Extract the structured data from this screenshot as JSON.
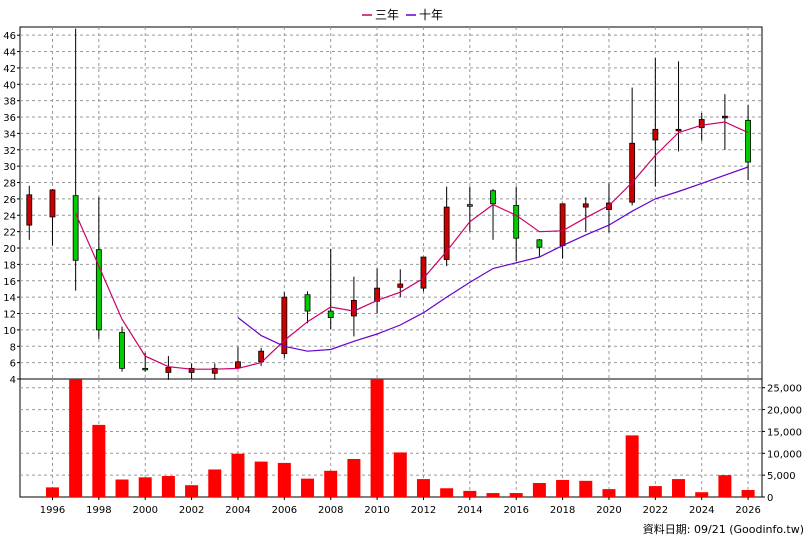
{
  "legend": [
    {
      "label": "三年",
      "color": "#cc0066"
    },
    {
      "label": "十年",
      "color": "#6600cc"
    }
  ],
  "footnote": "資料日期: 09/21 (Goodinfo.tw)",
  "colors": {
    "up": "#cc0000",
    "down": "#00cc00",
    "volume": "#ff0000",
    "grid": "#999999"
  },
  "chart_data": [
    {
      "type": "candlestick",
      "title": "",
      "ylim": [
        4,
        47
      ],
      "y_ticks": [
        4,
        6,
        8,
        10,
        12,
        14,
        16,
        18,
        20,
        22,
        24,
        26,
        28,
        30,
        32,
        34,
        36,
        38,
        40,
        42,
        44,
        46
      ],
      "x_tick_labels": [
        "1996",
        "1998",
        "2000",
        "2002",
        "2004",
        "2006",
        "2008",
        "2010",
        "2012",
        "2014",
        "2016",
        "2018",
        "2020",
        "2022",
        "2024",
        "2026"
      ],
      "x_range": [
        1994.6,
        2026.6
      ],
      "candles": [
        {
          "year": 1995,
          "open": 22.8,
          "high": 27.6,
          "low": 21.0,
          "close": 26.5
        },
        {
          "year": 1996,
          "open": 23.8,
          "high": 27.2,
          "low": 20.3,
          "close": 27.1
        },
        {
          "year": 1997,
          "open": 26.4,
          "high": 46.8,
          "low": 14.8,
          "close": 18.5
        },
        {
          "year": 1998,
          "open": 19.8,
          "high": 26.2,
          "low": 8.9,
          "close": 10.0
        },
        {
          "year": 1999,
          "open": 9.7,
          "high": 10.4,
          "low": 4.9,
          "close": 5.3
        },
        {
          "year": 2000,
          "open": 5.3,
          "high": 7.2,
          "low": 4.9,
          "close": 5.2
        },
        {
          "year": 2001,
          "open": 4.8,
          "high": 6.8,
          "low": 3.9,
          "close": 5.4
        },
        {
          "year": 2002,
          "open": 4.8,
          "high": 5.9,
          "low": 3.9,
          "close": 5.3
        },
        {
          "year": 2003,
          "open": 4.7,
          "high": 5.9,
          "low": 3.9,
          "close": 5.3
        },
        {
          "year": 2004,
          "open": 5.4,
          "high": 7.9,
          "low": 5.2,
          "close": 6.1
        },
        {
          "year": 2005,
          "open": 6.1,
          "high": 7.8,
          "low": 5.6,
          "close": 7.4
        },
        {
          "year": 2006,
          "open": 7.1,
          "high": 14.6,
          "low": 6.6,
          "close": 14.0
        },
        {
          "year": 2007,
          "open": 14.3,
          "high": 14.7,
          "low": 10.8,
          "close": 12.3
        },
        {
          "year": 2008,
          "open": 12.3,
          "high": 19.9,
          "low": 10.1,
          "close": 11.5
        },
        {
          "year": 2009,
          "open": 11.7,
          "high": 16.5,
          "low": 9.2,
          "close": 13.6
        },
        {
          "year": 2010,
          "open": 13.5,
          "high": 17.5,
          "low": 12.0,
          "close": 15.1
        },
        {
          "year": 2011,
          "open": 15.2,
          "high": 17.4,
          "low": 14.0,
          "close": 15.6
        },
        {
          "year": 2012,
          "open": 15.1,
          "high": 18.9,
          "low": 14.7,
          "close": 18.9
        },
        {
          "year": 2013,
          "open": 18.6,
          "high": 27.5,
          "low": 17.8,
          "close": 25.0
        },
        {
          "year": 2014,
          "open": 25.3,
          "high": 27.5,
          "low": 22.0,
          "close": 25.1
        },
        {
          "year": 2015,
          "open": 27.0,
          "high": 27.2,
          "low": 21.0,
          "close": 25.4
        },
        {
          "year": 2016,
          "open": 25.2,
          "high": 27.5,
          "low": 18.4,
          "close": 21.2
        },
        {
          "year": 2017,
          "open": 21.0,
          "high": 21.1,
          "low": 18.9,
          "close": 20.1
        },
        {
          "year": 2018,
          "open": 20.3,
          "high": 25.4,
          "low": 18.7,
          "close": 25.4
        },
        {
          "year": 2019,
          "open": 25.0,
          "high": 26.2,
          "low": 22.0,
          "close": 25.4
        },
        {
          "year": 2020,
          "open": 24.7,
          "high": 27.9,
          "low": 21.9,
          "close": 25.5
        },
        {
          "year": 2021,
          "open": 25.6,
          "high": 39.6,
          "low": 25.2,
          "close": 32.8
        },
        {
          "year": 2022,
          "open": 33.2,
          "high": 43.2,
          "low": 27.5,
          "close": 34.5
        },
        {
          "year": 2023,
          "open": 34.4,
          "high": 42.8,
          "low": 31.8,
          "close": 34.5
        },
        {
          "year": 2024,
          "open": 34.7,
          "high": 36.5,
          "low": 33.1,
          "close": 35.7
        },
        {
          "year": 2025,
          "open": 35.9,
          "high": 38.8,
          "low": 32.0,
          "close": 36.1
        },
        {
          "year": 2026,
          "open": 35.6,
          "high": 37.5,
          "low": 28.3,
          "close": 30.5
        }
      ],
      "series": [
        {
          "name": "三年",
          "color": "#cc0066",
          "x": [
            1997,
            1998,
            1999,
            2000,
            2001,
            2002,
            2003,
            2004,
            2005,
            2006,
            2007,
            2008,
            2009,
            2010,
            2011,
            2012,
            2013,
            2014,
            2015,
            2016,
            2017,
            2018,
            2019,
            2020,
            2021,
            2022,
            2023,
            2024,
            2025,
            2026
          ],
          "values": [
            24.2,
            17.8,
            11.3,
            6.8,
            5.5,
            5.2,
            5.2,
            5.3,
            6.0,
            8.7,
            11.0,
            12.8,
            12.3,
            13.6,
            14.6,
            16.3,
            19.6,
            23.2,
            25.3,
            24.0,
            22.0,
            22.1,
            23.7,
            25.2,
            28.0,
            31.3,
            34.1,
            35.0,
            35.4,
            34.1
          ]
        },
        {
          "name": "十年",
          "color": "#6600cc",
          "x": [
            2004,
            2005,
            2006,
            2007,
            2008,
            2009,
            2010,
            2011,
            2012,
            2013,
            2014,
            2015,
            2016,
            2017,
            2018,
            2019,
            2020,
            2021,
            2022,
            2023,
            2024,
            2025,
            2026
          ],
          "values": [
            11.5,
            9.3,
            8.0,
            7.4,
            7.6,
            8.6,
            9.5,
            10.6,
            12.1,
            14.0,
            15.8,
            17.5,
            18.2,
            18.9,
            20.3,
            21.6,
            22.8,
            24.5,
            26.0,
            26.9,
            27.9,
            28.9,
            29.9
          ]
        }
      ]
    },
    {
      "type": "bar",
      "title": "",
      "ylim": [
        0,
        27000
      ],
      "y_ticks": [
        0,
        5000,
        10000,
        15000,
        20000,
        25000
      ],
      "y_tick_labels": [
        "0",
        "5,000",
        "10,000",
        "15,000",
        "20,000",
        "25,000"
      ],
      "x_tick_labels": [
        "1996",
        "1998",
        "2000",
        "2002",
        "2004",
        "2006",
        "2008",
        "2010",
        "2012",
        "2014",
        "2016",
        "2018",
        "2020",
        "2022",
        "2024",
        "2026"
      ],
      "categories": [
        1995,
        1996,
        1997,
        1998,
        1999,
        2000,
        2001,
        2002,
        2003,
        2004,
        2005,
        2006,
        2007,
        2008,
        2009,
        2010,
        2011,
        2012,
        2013,
        2014,
        2015,
        2016,
        2017,
        2018,
        2019,
        2020,
        2021,
        2022,
        2023,
        2024,
        2025,
        2026
      ],
      "values": [
        0,
        2200,
        27000,
        16500,
        4000,
        4500,
        4800,
        2700,
        6300,
        9900,
        8100,
        7800,
        4200,
        6000,
        8700,
        27500,
        10200,
        4100,
        2000,
        1400,
        900,
        900,
        3200,
        3900,
        3700,
        1800,
        14100,
        2500,
        4100,
        1100,
        5000,
        1600
      ]
    }
  ]
}
